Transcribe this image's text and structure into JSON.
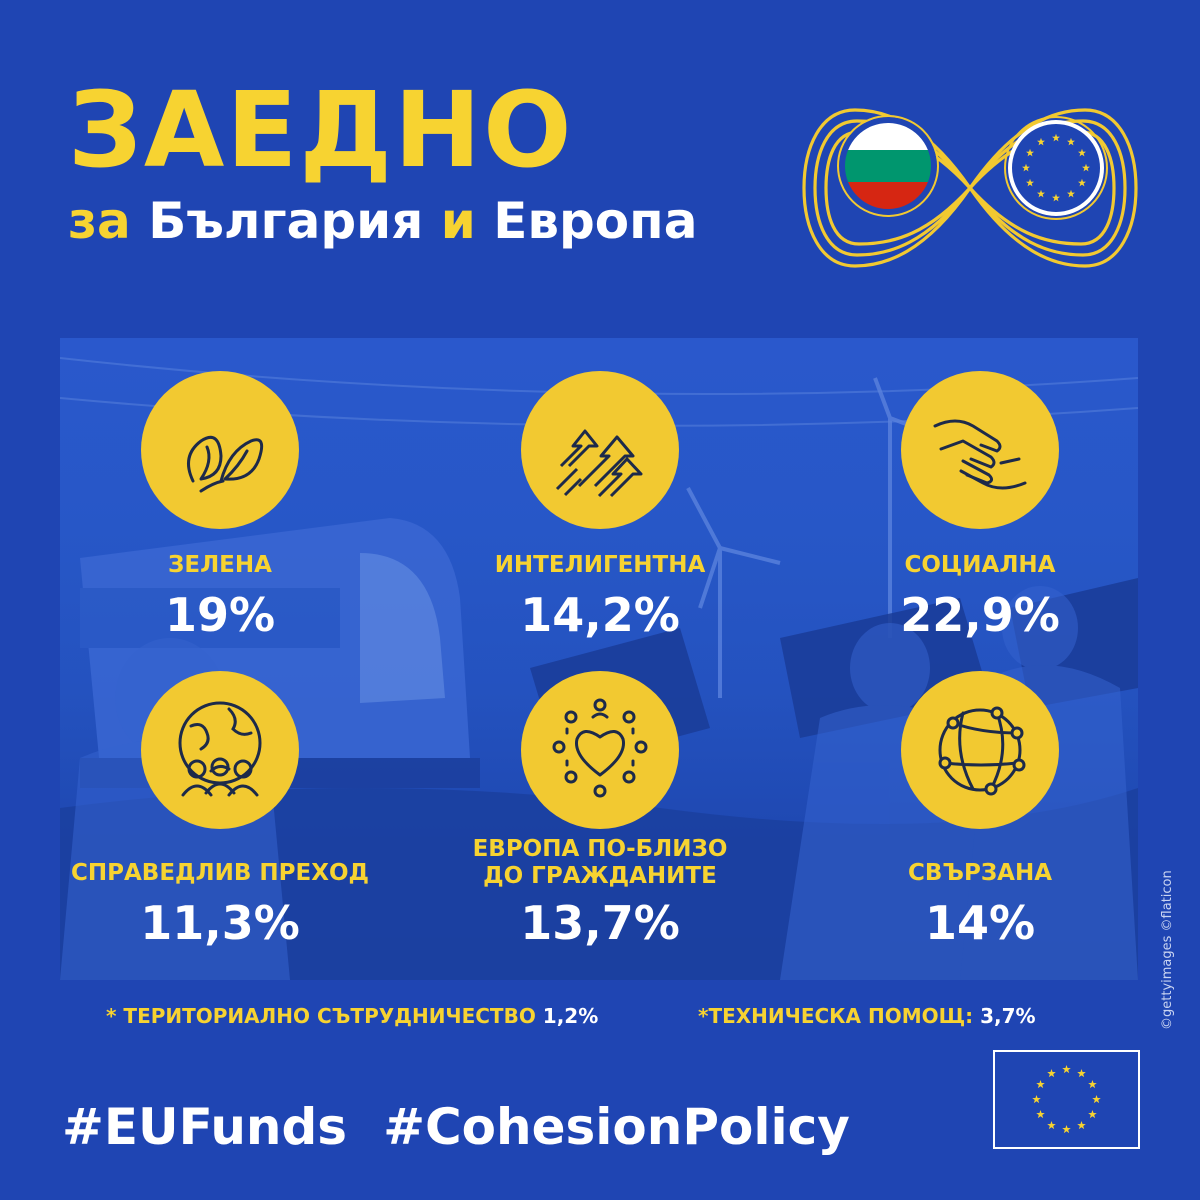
{
  "header": {
    "title": "ЗАЕДНО",
    "subtitle_prefix": "за",
    "subtitle_part1": "България",
    "subtitle_and": "и",
    "subtitle_part2": "Европа"
  },
  "items": [
    {
      "label": "ЗЕЛЕНА",
      "value": "19%",
      "icon": "leaf-icon"
    },
    {
      "label": "ИНТЕЛИГЕНТНА",
      "value": "14,2%",
      "icon": "arrows-up-icon"
    },
    {
      "label": "СОЦИАЛНА",
      "value": "22,9%",
      "icon": "hands-icon"
    },
    {
      "label": "СПРАВЕДЛИВ ПРЕХОД",
      "value": "11,3%",
      "icon": "globe-people-icon"
    },
    {
      "label": "ЕВРОПА ПО-БЛИЗО ДО ГРАЖДАНИТЕ",
      "value": "13,7%",
      "icon": "heart-community-icon"
    },
    {
      "label": "СВЪРЗАНА",
      "value": "14%",
      "icon": "network-globe-icon"
    }
  ],
  "notes": {
    "territorial_label": "* ТЕРИТОРИАЛНО СЪТРУДНИЧЕСТВО",
    "territorial_value": "1,2%",
    "technical_label": "*ТЕХНИЧЕСКА ПОМОЩ:",
    "technical_value": "3,7%"
  },
  "hashtags": [
    "#EUFunds",
    "#CohesionPolicy"
  ],
  "credit": "©gettyimages ©flaticon",
  "colors": {
    "background": "#1f45b3",
    "accent_yellow": "#f7d331",
    "circle_yellow": "#f2c931",
    "text_white": "#ffffff",
    "bg_flag_white": "#ffffff",
    "bg_flag_green": "#00966e",
    "bg_flag_red": "#d62612"
  }
}
